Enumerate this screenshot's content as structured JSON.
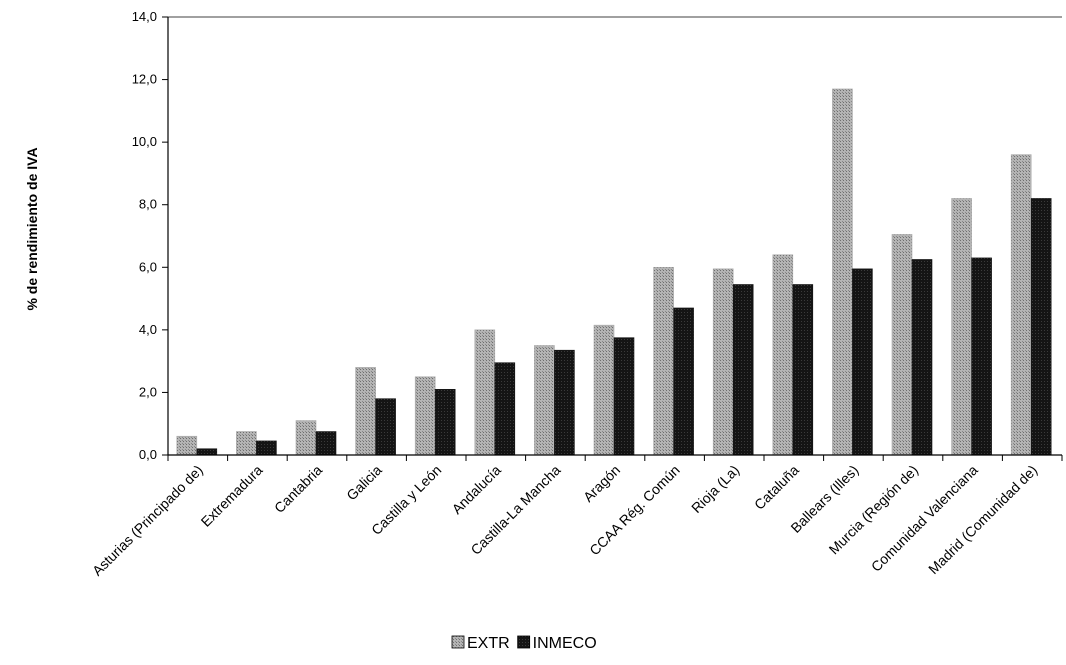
{
  "chart_data": {
    "type": "bar",
    "ylabel": "% de rendimiento de IVA",
    "ylim": [
      0,
      14
    ],
    "yticks": [
      "0,0",
      "2,0",
      "4,0",
      "6,0",
      "8,0",
      "10,0",
      "12,0",
      "14,0"
    ],
    "grid": false,
    "legend_position": "bottom",
    "categories": [
      "Asturias (Principado de)",
      "Extremadura",
      "Cantabria",
      "Galicia",
      "Castilla y León",
      "Andalucía",
      "Castilla-La Mancha",
      "Aragón",
      "CCAA Rég. Común",
      "Rioja (La)",
      "Cataluña",
      "Ballears (Illes)",
      "Murcia (Región de)",
      "Comunidad Valenciana",
      "Madrid (Comunidad de)"
    ],
    "series": [
      {
        "name": "EXTR",
        "color": "#a8a8a8",
        "values": [
          0.6,
          0.75,
          1.1,
          2.8,
          2.5,
          4.0,
          3.5,
          4.15,
          6.0,
          5.95,
          6.4,
          11.7,
          7.05,
          8.2,
          9.6
        ]
      },
      {
        "name": "INMECO",
        "color": "#161616",
        "values": [
          0.2,
          0.45,
          0.75,
          1.8,
          2.1,
          2.95,
          3.35,
          3.75,
          4.7,
          5.45,
          5.45,
          5.95,
          6.25,
          6.3,
          8.2
        ]
      }
    ]
  }
}
